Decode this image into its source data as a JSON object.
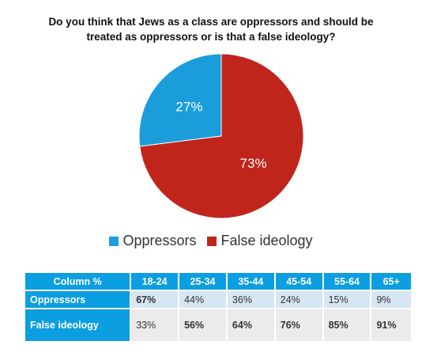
{
  "chart_data": {
    "type": "pie",
    "title": "Do you think that Jews as a class are oppressors and should be treated as oppressors or is that a false ideology?",
    "slices": [
      {
        "label": "Oppressors",
        "value": 27,
        "display": "27%",
        "color": "#1b9ddb"
      },
      {
        "label": "False ideology",
        "value": 73,
        "display": "73%",
        "color": "#c0251c"
      }
    ],
    "legend": "bottom"
  },
  "table": {
    "corner": "Column %",
    "columns": [
      "18-24",
      "25-34",
      "35-44",
      "45-54",
      "55-64",
      "65+"
    ],
    "rows": [
      {
        "label": "Oppressors",
        "cells": [
          "67%",
          "44%",
          "36%",
          "24%",
          "15%",
          "9%"
        ],
        "bold": [
          true,
          false,
          false,
          false,
          false,
          false
        ]
      },
      {
        "label": "False ideology",
        "cells": [
          "33%",
          "56%",
          "64%",
          "76%",
          "85%",
          "91%"
        ],
        "bold": [
          false,
          true,
          true,
          true,
          true,
          true
        ]
      }
    ]
  }
}
